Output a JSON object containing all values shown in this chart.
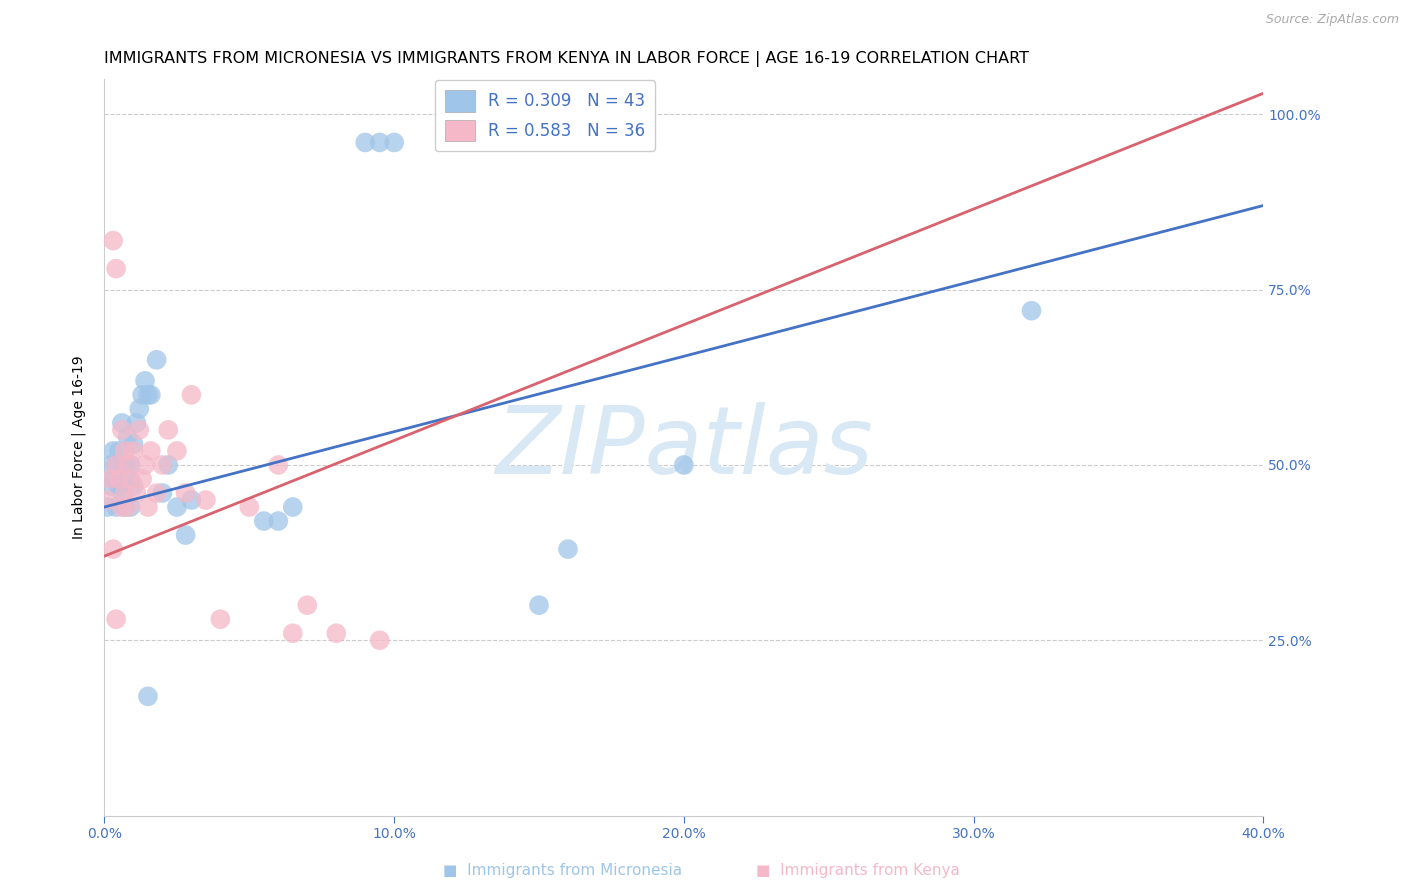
{
  "title": "IMMIGRANTS FROM MICRONESIA VS IMMIGRANTS FROM KENYA IN LABOR FORCE | AGE 16-19 CORRELATION CHART",
  "source_text": "Source: ZipAtlas.com",
  "ylabel": "In Labor Force | Age 16-19",
  "xlim": [
    0.0,
    0.4
  ],
  "ylim": [
    0.0,
    1.05
  ],
  "xticks": [
    0.0,
    0.1,
    0.2,
    0.3,
    0.4
  ],
  "xtick_labels": [
    "0.0%",
    "10.0%",
    "20.0%",
    "30.0%",
    "40.0%"
  ],
  "yticks": [
    0.25,
    0.5,
    0.75,
    1.0
  ],
  "ytick_labels": [
    "25.0%",
    "50.0%",
    "75.0%",
    "100.0%"
  ],
  "blue_scatter_color": "#9fc5e8",
  "pink_scatter_color": "#f4b8c8",
  "blue_line_color": "#4472c4",
  "pink_line_color": "#d9626f",
  "axis_color": "#4472c4",
  "grid_color": "#cccccc",
  "watermark_color": "#d8e8f5",
  "micronesia_x": [
    0.001,
    0.002,
    0.002,
    0.003,
    0.003,
    0.004,
    0.004,
    0.005,
    0.005,
    0.005,
    0.006,
    0.006,
    0.007,
    0.007,
    0.008,
    0.008,
    0.009,
    0.009,
    0.01,
    0.01,
    0.011,
    0.012,
    0.013,
    0.014,
    0.015,
    0.016,
    0.018,
    0.02,
    0.022,
    0.025,
    0.028,
    0.03,
    0.055,
    0.06,
    0.065,
    0.09,
    0.095,
    0.1,
    0.15,
    0.16,
    0.2,
    0.32,
    0.015
  ],
  "micronesia_y": [
    0.44,
    0.5,
    0.47,
    0.48,
    0.52,
    0.44,
    0.5,
    0.48,
    0.52,
    0.47,
    0.56,
    0.46,
    0.5,
    0.44,
    0.54,
    0.48,
    0.44,
    0.5,
    0.53,
    0.47,
    0.56,
    0.58,
    0.6,
    0.62,
    0.6,
    0.6,
    0.65,
    0.46,
    0.5,
    0.44,
    0.4,
    0.45,
    0.42,
    0.42,
    0.44,
    0.96,
    0.96,
    0.96,
    0.3,
    0.38,
    0.5,
    0.72,
    0.17
  ],
  "kenya_x": [
    0.001,
    0.002,
    0.003,
    0.004,
    0.004,
    0.005,
    0.006,
    0.006,
    0.007,
    0.007,
    0.008,
    0.008,
    0.009,
    0.01,
    0.011,
    0.012,
    0.013,
    0.014,
    0.015,
    0.016,
    0.018,
    0.02,
    0.022,
    0.025,
    0.028,
    0.03,
    0.035,
    0.04,
    0.05,
    0.06,
    0.065,
    0.07,
    0.08,
    0.095,
    0.003,
    0.004
  ],
  "kenya_y": [
    0.45,
    0.48,
    0.82,
    0.78,
    0.5,
    0.48,
    0.44,
    0.55,
    0.52,
    0.46,
    0.5,
    0.44,
    0.48,
    0.52,
    0.46,
    0.55,
    0.48,
    0.5,
    0.44,
    0.52,
    0.46,
    0.5,
    0.55,
    0.52,
    0.46,
    0.6,
    0.45,
    0.28,
    0.44,
    0.5,
    0.26,
    0.3,
    0.26,
    0.25,
    0.38,
    0.28
  ],
  "blue_trend_x": [
    0.0,
    0.4
  ],
  "blue_trend_y": [
    0.44,
    0.87
  ],
  "pink_trend_x": [
    0.0,
    0.4
  ],
  "pink_trend_y": [
    0.37,
    1.03
  ],
  "title_fontsize": 11.5,
  "label_fontsize": 10,
  "tick_fontsize": 10,
  "legend_fontsize": 12
}
